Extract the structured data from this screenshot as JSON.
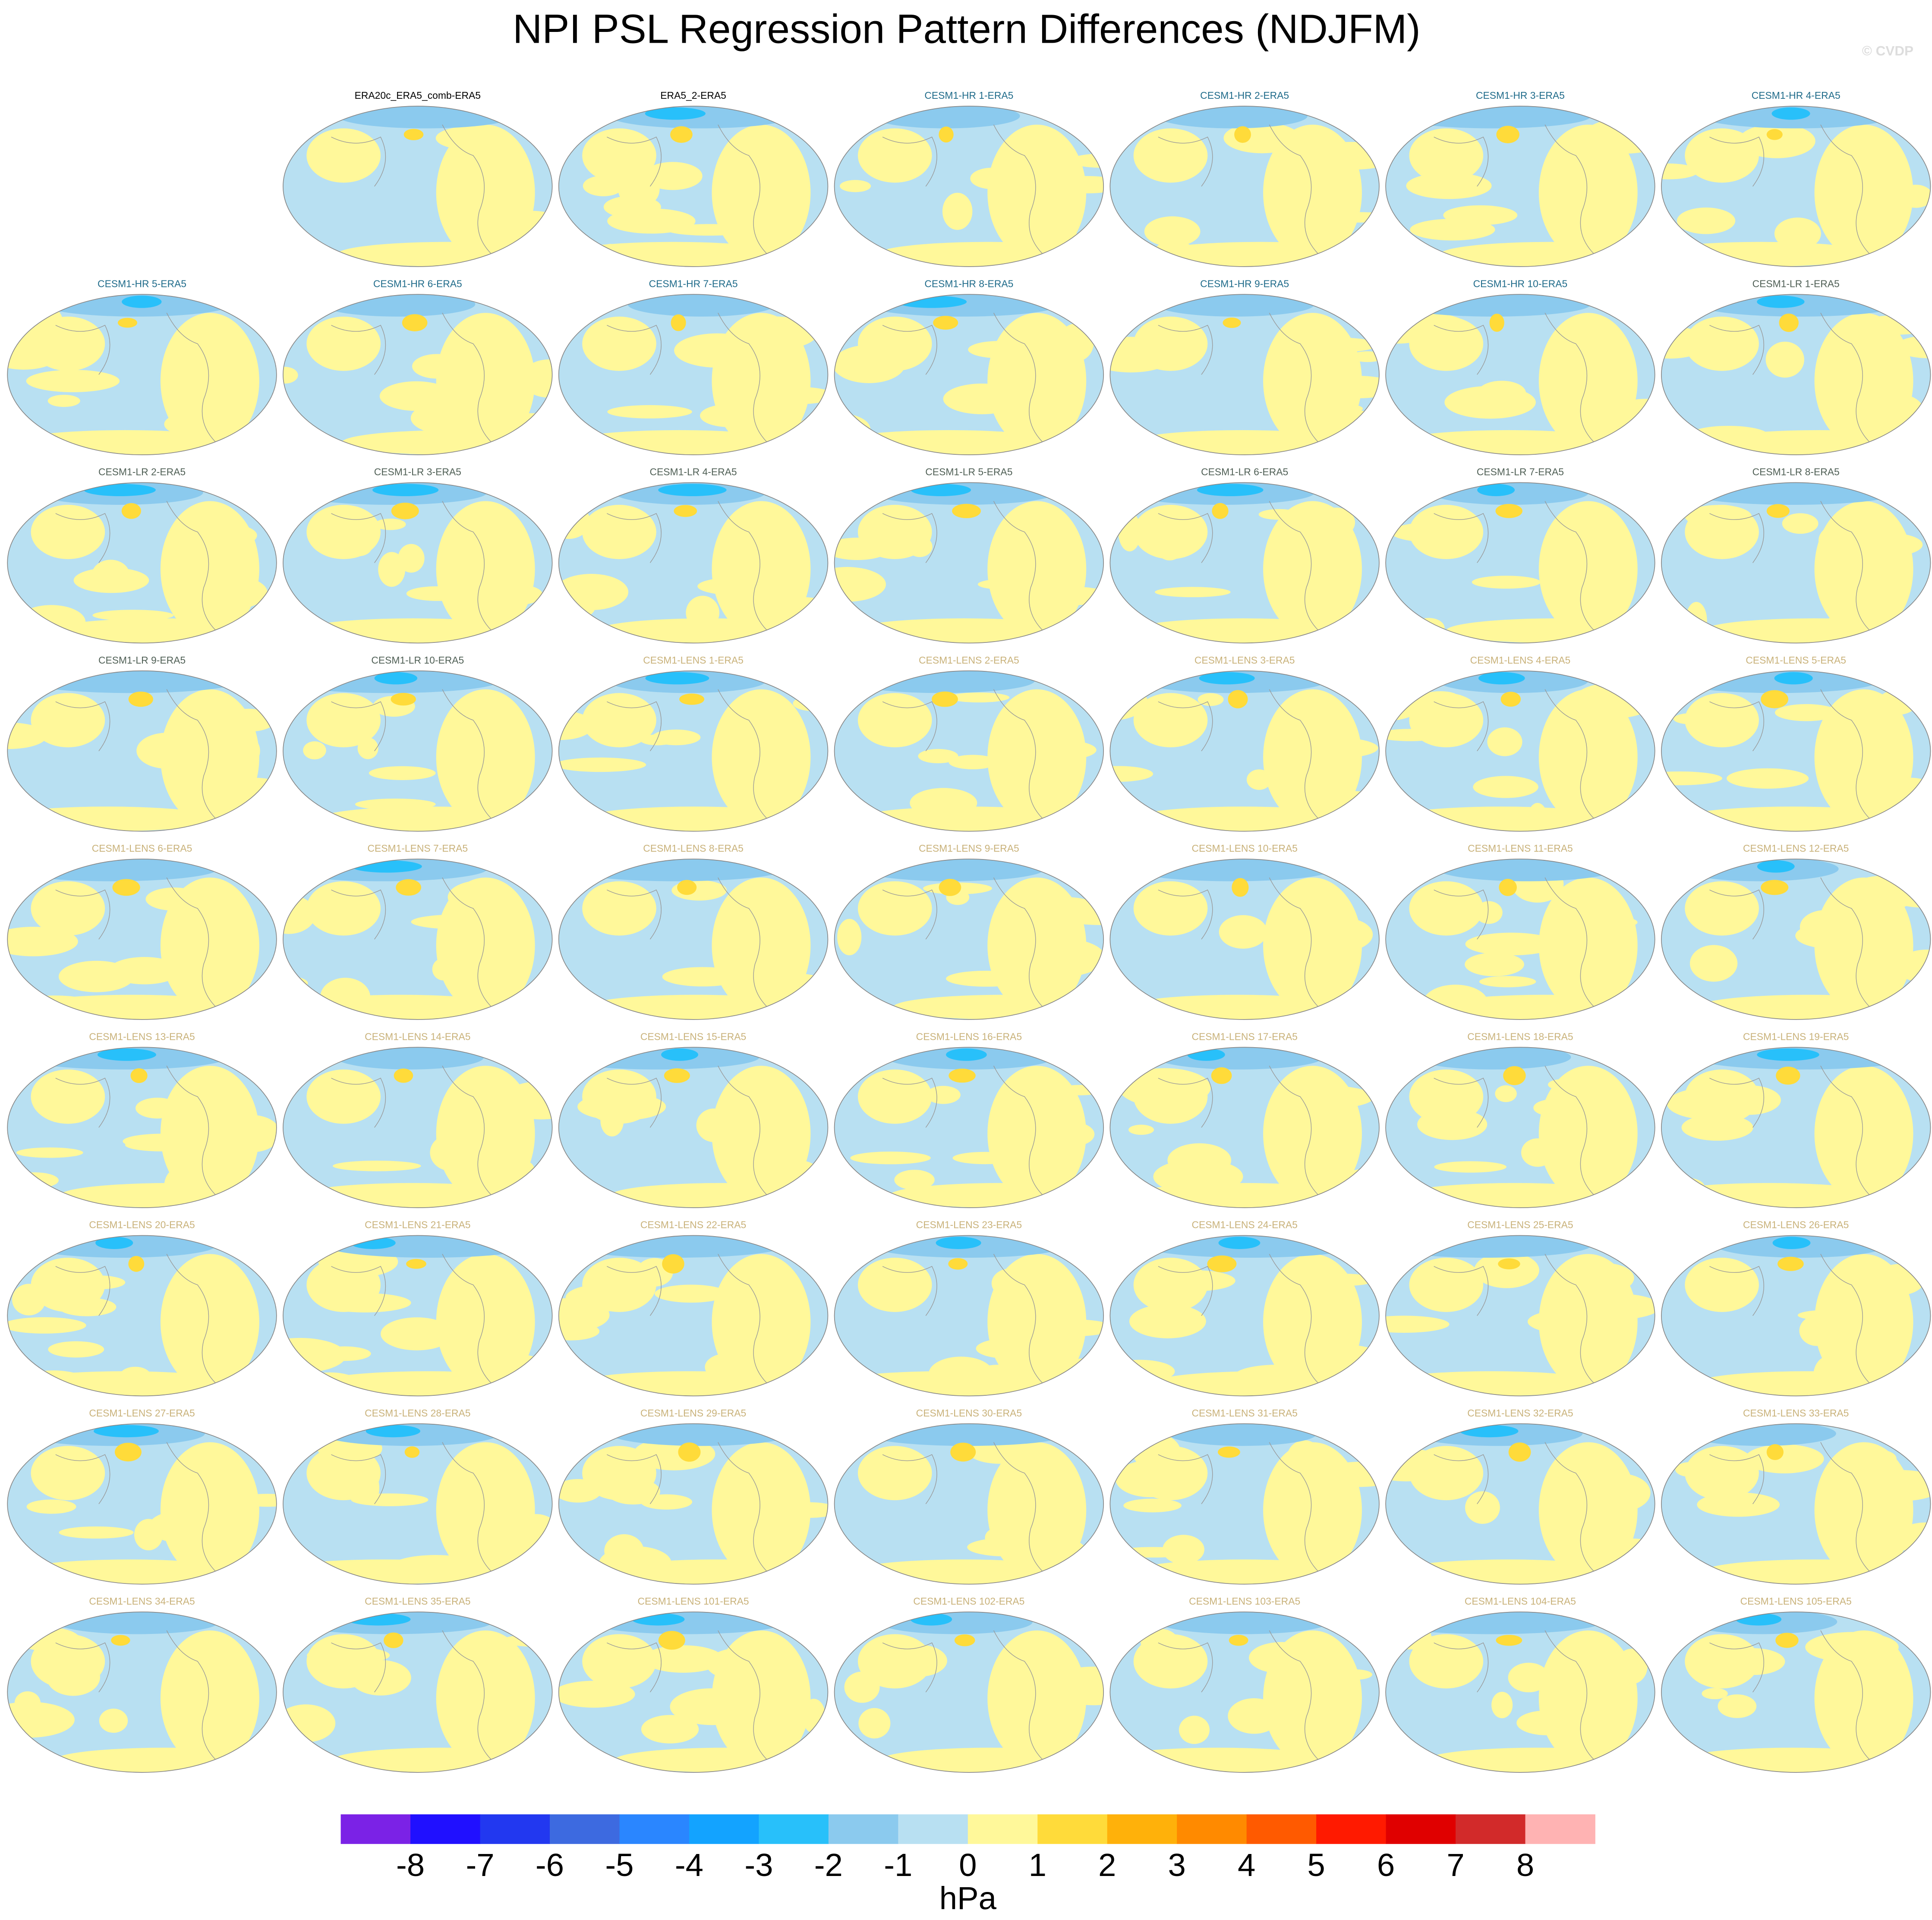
{
  "title": "NPI PSL Regression Pattern Differences (NDJFM)",
  "watermark": "© CVDP",
  "panels": [
    {
      "title": "ERA20c_ERA5_comb-ERA5",
      "color": "#000000"
    },
    {
      "title": "ERA5_2-ERA5",
      "color": "#000000"
    },
    {
      "title": "CESM1-HR 1-ERA5",
      "color": "#1f6b8a"
    },
    {
      "title": "CESM1-HR 2-ERA5",
      "color": "#1f6b8a"
    },
    {
      "title": "CESM1-HR 3-ERA5",
      "color": "#1f6b8a"
    },
    {
      "title": "CESM1-HR 4-ERA5",
      "color": "#1f6b8a"
    },
    {
      "title": "CESM1-HR 5-ERA5",
      "color": "#1f6b8a"
    },
    {
      "title": "CESM1-HR 6-ERA5",
      "color": "#1f6b8a"
    },
    {
      "title": "CESM1-HR 7-ERA5",
      "color": "#1f6b8a"
    },
    {
      "title": "CESM1-HR 8-ERA5",
      "color": "#1f6b8a"
    },
    {
      "title": "CESM1-HR 9-ERA5",
      "color": "#1f6b8a"
    },
    {
      "title": "CESM1-HR 10-ERA5",
      "color": "#1f6b8a"
    },
    {
      "title": "CESM1-LR 1-ERA5",
      "color": "#4f5f55"
    },
    {
      "title": "CESM1-LR 2-ERA5",
      "color": "#4f5f55"
    },
    {
      "title": "CESM1-LR 3-ERA5",
      "color": "#4f5f55"
    },
    {
      "title": "CESM1-LR 4-ERA5",
      "color": "#4f5f55"
    },
    {
      "title": "CESM1-LR 5-ERA5",
      "color": "#4f5f55"
    },
    {
      "title": "CESM1-LR 6-ERA5",
      "color": "#4f5f55"
    },
    {
      "title": "CESM1-LR 7-ERA5",
      "color": "#4f5f55"
    },
    {
      "title": "CESM1-LR 8-ERA5",
      "color": "#4f5f55"
    },
    {
      "title": "CESM1-LR 9-ERA5",
      "color": "#4f5f55"
    },
    {
      "title": "CESM1-LR 10-ERA5",
      "color": "#4f5f55"
    },
    {
      "title": "CESM1-LENS 1-ERA5",
      "color": "#c9b27a"
    },
    {
      "title": "CESM1-LENS 2-ERA5",
      "color": "#c9b27a"
    },
    {
      "title": "CESM1-LENS 3-ERA5",
      "color": "#c9b27a"
    },
    {
      "title": "CESM1-LENS 4-ERA5",
      "color": "#c9b27a"
    },
    {
      "title": "CESM1-LENS 5-ERA5",
      "color": "#c9b27a"
    },
    {
      "title": "CESM1-LENS 6-ERA5",
      "color": "#c9b27a"
    },
    {
      "title": "CESM1-LENS 7-ERA5",
      "color": "#c9b27a"
    },
    {
      "title": "CESM1-LENS 8-ERA5",
      "color": "#c9b27a"
    },
    {
      "title": "CESM1-LENS 9-ERA5",
      "color": "#c9b27a"
    },
    {
      "title": "CESM1-LENS 10-ERA5",
      "color": "#c9b27a"
    },
    {
      "title": "CESM1-LENS 11-ERA5",
      "color": "#c9b27a"
    },
    {
      "title": "CESM1-LENS 12-ERA5",
      "color": "#c9b27a"
    },
    {
      "title": "CESM1-LENS 13-ERA5",
      "color": "#c9b27a"
    },
    {
      "title": "CESM1-LENS 14-ERA5",
      "color": "#c9b27a"
    },
    {
      "title": "CESM1-LENS 15-ERA5",
      "color": "#c9b27a"
    },
    {
      "title": "CESM1-LENS 16-ERA5",
      "color": "#c9b27a"
    },
    {
      "title": "CESM1-LENS 17-ERA5",
      "color": "#c9b27a"
    },
    {
      "title": "CESM1-LENS 18-ERA5",
      "color": "#c9b27a"
    },
    {
      "title": "CESM1-LENS 19-ERA5",
      "color": "#c9b27a"
    },
    {
      "title": "CESM1-LENS 20-ERA5",
      "color": "#c9b27a"
    },
    {
      "title": "CESM1-LENS 21-ERA5",
      "color": "#c9b27a"
    },
    {
      "title": "CESM1-LENS 22-ERA5",
      "color": "#c9b27a"
    },
    {
      "title": "CESM1-LENS 23-ERA5",
      "color": "#c9b27a"
    },
    {
      "title": "CESM1-LENS 24-ERA5",
      "color": "#c9b27a"
    },
    {
      "title": "CESM1-LENS 25-ERA5",
      "color": "#c9b27a"
    },
    {
      "title": "CESM1-LENS 26-ERA5",
      "color": "#c9b27a"
    },
    {
      "title": "CESM1-LENS 27-ERA5",
      "color": "#c9b27a"
    },
    {
      "title": "CESM1-LENS 28-ERA5",
      "color": "#c9b27a"
    },
    {
      "title": "CESM1-LENS 29-ERA5",
      "color": "#c9b27a"
    },
    {
      "title": "CESM1-LENS 30-ERA5",
      "color": "#c9b27a"
    },
    {
      "title": "CESM1-LENS 31-ERA5",
      "color": "#c9b27a"
    },
    {
      "title": "CESM1-LENS 32-ERA5",
      "color": "#c9b27a"
    },
    {
      "title": "CESM1-LENS 33-ERA5",
      "color": "#c9b27a"
    },
    {
      "title": "CESM1-LENS 34-ERA5",
      "color": "#c9b27a"
    },
    {
      "title": "CESM1-LENS 35-ERA5",
      "color": "#c9b27a"
    },
    {
      "title": "CESM1-LENS 101-ERA5",
      "color": "#c9b27a"
    },
    {
      "title": "CESM1-LENS 102-ERA5",
      "color": "#c9b27a"
    },
    {
      "title": "CESM1-LENS 103-ERA5",
      "color": "#c9b27a"
    },
    {
      "title": "CESM1-LENS 104-ERA5",
      "color": "#c9b27a"
    },
    {
      "title": "CESM1-LENS 105-ERA5",
      "color": "#c9b27a"
    }
  ],
  "colorbar": {
    "levels": [
      -8,
      -7,
      -6,
      -5,
      -4,
      -3,
      -2,
      -1,
      0,
      1,
      2,
      3,
      4,
      5,
      6,
      7,
      8
    ],
    "colors": [
      "#7b22e6",
      "#2010ff",
      "#2238f0",
      "#3d6ae0",
      "#2a86ff",
      "#13a3ff",
      "#28c0fa",
      "#8bcaee",
      "#b8e0f2",
      "#fff89a",
      "#ffdb3a",
      "#ffb10a",
      "#ff8a00",
      "#ff5a00",
      "#ff1a00",
      "#e00000",
      "#d22a2a",
      "#ffb3b3"
    ],
    "unit": "hPa"
  }
}
